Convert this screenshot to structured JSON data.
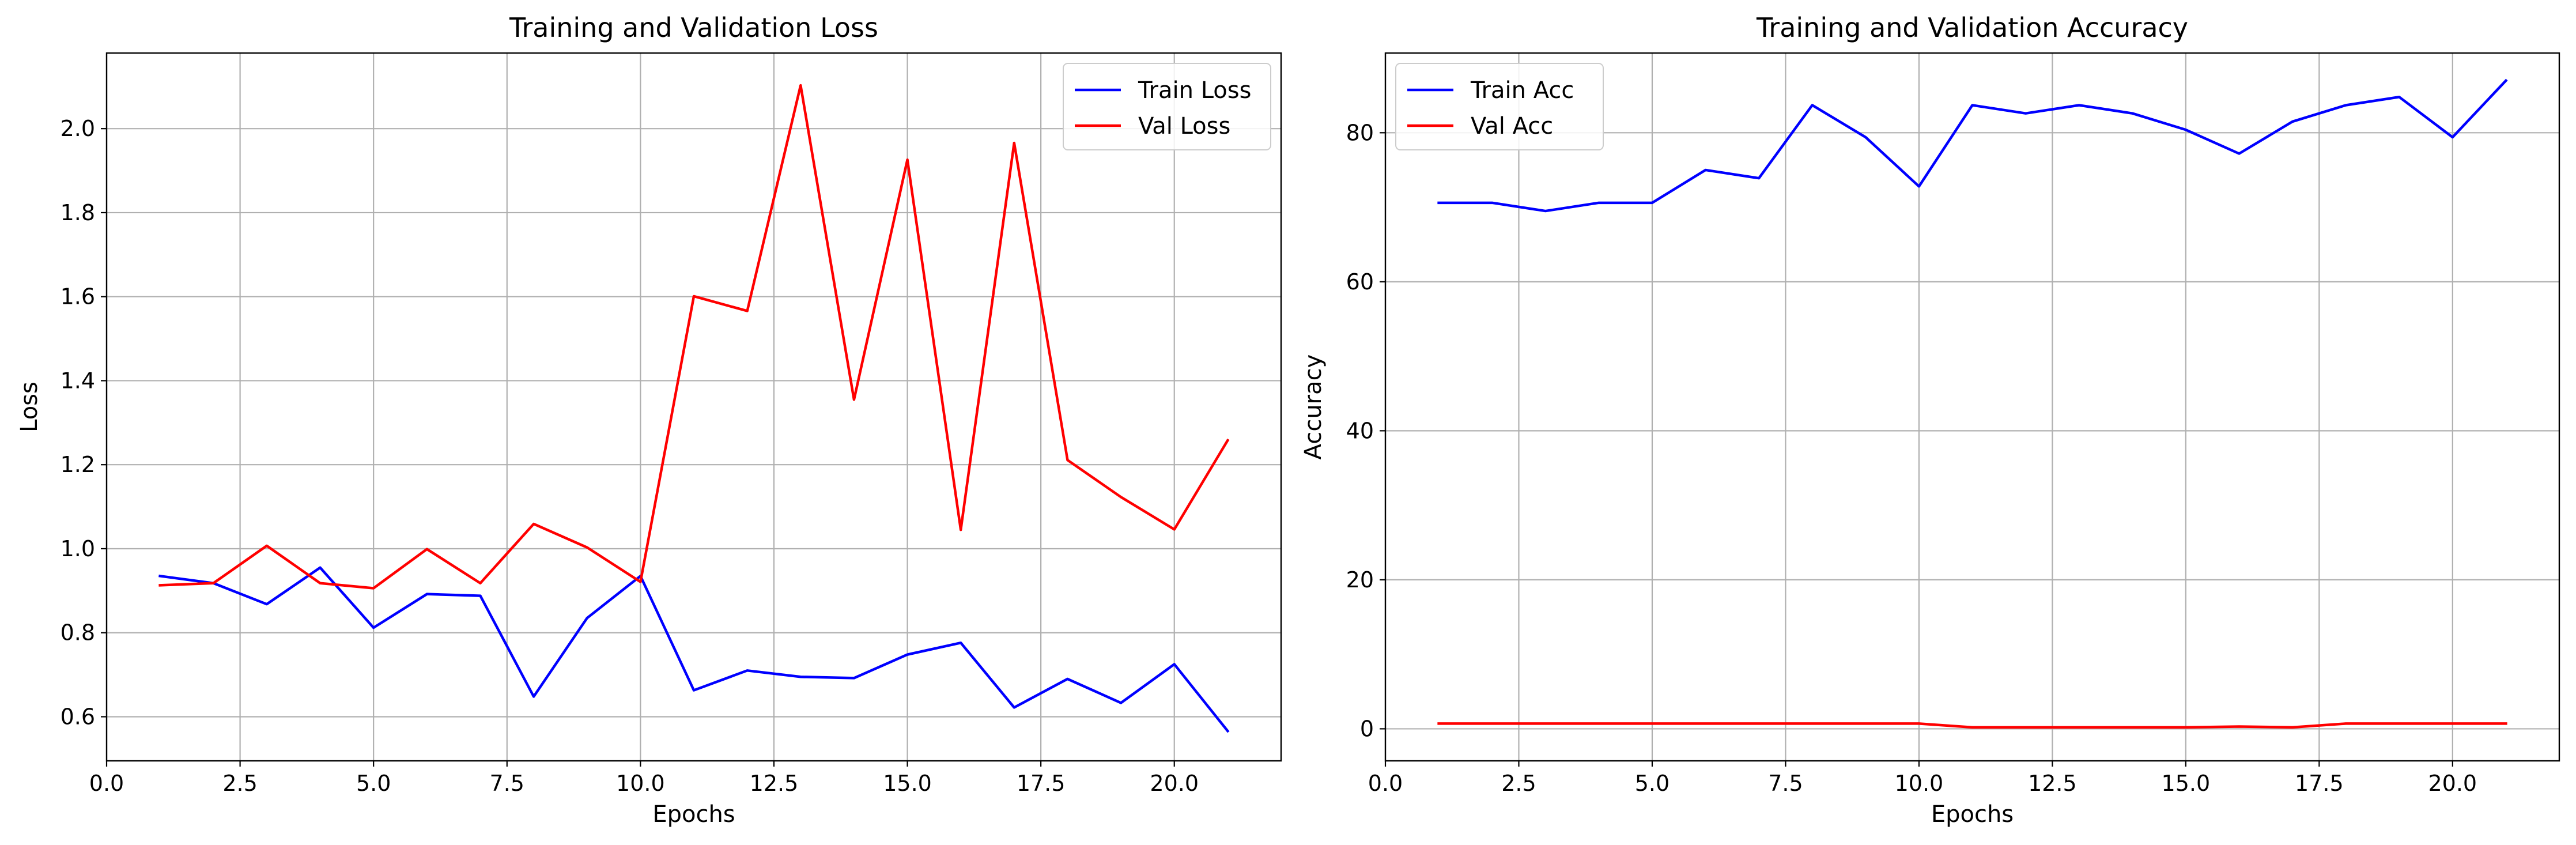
{
  "chart_data": [
    {
      "type": "line",
      "title": "Training and Validation Loss",
      "xlabel": "Epochs",
      "ylabel": "Loss",
      "xlim": [
        0,
        22.0
      ],
      "ylim": [
        0.495,
        2.18
      ],
      "xticks": [
        "0.0",
        "2.5",
        "5.0",
        "7.5",
        "10.0",
        "12.5",
        "15.0",
        "17.5",
        "20.0"
      ],
      "xtick_values": [
        0,
        2.5,
        5,
        7.5,
        10,
        12.5,
        15,
        17.5,
        20
      ],
      "yticks": [
        "0.6",
        "0.8",
        "1.0",
        "1.2",
        "1.4",
        "1.6",
        "1.8",
        "2.0"
      ],
      "ytick_values": [
        0.6,
        0.8,
        1.0,
        1.2,
        1.4,
        1.6,
        1.8,
        2.0
      ],
      "grid": true,
      "legend_position": "top-right",
      "x": [
        1,
        2,
        3,
        4,
        5,
        6,
        7,
        8,
        9,
        10,
        11,
        12,
        13,
        14,
        15,
        16,
        17,
        18,
        19,
        20,
        21
      ],
      "series": [
        {
          "name": "Train Loss",
          "color": "#0000ff",
          "values": [
            0.935,
            0.918,
            0.868,
            0.955,
            0.812,
            0.892,
            0.888,
            0.648,
            0.835,
            0.935,
            0.663,
            0.71,
            0.695,
            0.692,
            0.748,
            0.776,
            0.622,
            0.69,
            0.633,
            0.725,
            0.566
          ]
        },
        {
          "name": "Val Loss",
          "color": "#ff0000",
          "values": [
            0.913,
            0.918,
            1.007,
            0.918,
            0.906,
            0.999,
            0.918,
            1.059,
            1.003,
            0.921,
            1.601,
            1.566,
            2.103,
            1.355,
            1.926,
            1.045,
            1.966,
            1.211,
            1.123,
            1.046,
            1.258
          ]
        }
      ]
    },
    {
      "type": "line",
      "title": "Training and Validation Accuracy",
      "xlabel": "Epochs",
      "ylabel": "Accuracy",
      "xlim": [
        0,
        22.0
      ],
      "ylim": [
        -4.3,
        90.7
      ],
      "xticks": [
        "0.0",
        "2.5",
        "5.0",
        "7.5",
        "10.0",
        "12.5",
        "15.0",
        "17.5",
        "20.0"
      ],
      "xtick_values": [
        0,
        2.5,
        5,
        7.5,
        10,
        12.5,
        15,
        17.5,
        20
      ],
      "yticks": [
        "0",
        "20",
        "40",
        "60",
        "80"
      ],
      "ytick_values": [
        0,
        20,
        40,
        60,
        80
      ],
      "grid": true,
      "legend_position": "top-left",
      "x": [
        1,
        2,
        3,
        4,
        5,
        6,
        7,
        8,
        9,
        10,
        11,
        12,
        13,
        14,
        15,
        16,
        17,
        18,
        19,
        20,
        21
      ],
      "series": [
        {
          "name": "Train Acc",
          "color": "#0000ff",
          "values": [
            70.6,
            70.6,
            69.5,
            70.6,
            70.6,
            75.0,
            73.9,
            83.7,
            79.4,
            72.8,
            83.7,
            82.6,
            83.7,
            82.6,
            80.4,
            77.2,
            81.5,
            83.7,
            84.8,
            79.4,
            87.0
          ]
        },
        {
          "name": "Val Acc",
          "color": "#ff0000",
          "values": [
            0.7,
            0.7,
            0.7,
            0.7,
            0.7,
            0.7,
            0.7,
            0.7,
            0.7,
            0.7,
            0.2,
            0.2,
            0.2,
            0.2,
            0.2,
            0.3,
            0.2,
            0.7,
            0.7,
            0.7,
            0.7
          ]
        }
      ]
    }
  ]
}
